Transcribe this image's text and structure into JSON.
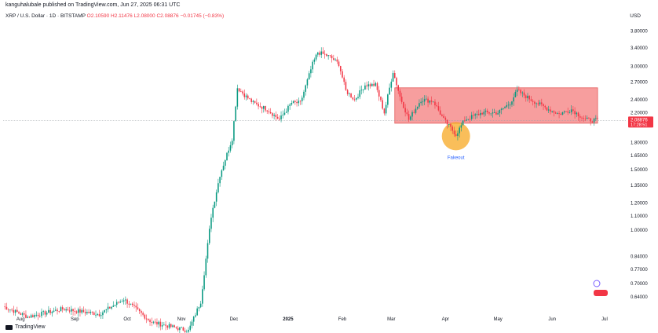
{
  "header": {
    "publisher": "kanguhalubale published on TradingView.com, Jun 27, 2025 06:31 UTC",
    "symbol": "XRP / U.S. Dollar · 1D · BITSTAMP",
    "ohlc": "O2.10590  H2.11476  L2.08000  C2.08876  −0.01745 (−0.83%)",
    "currency": "USD"
  },
  "footer": {
    "brand": "TradingView"
  },
  "colors": {
    "up": "#089981",
    "down": "#f23645",
    "box": "#f47e7e",
    "fakeout": "#f7a823",
    "label_blue": "#2962ff"
  },
  "chart_data": {
    "type": "candlestick",
    "y_scale": "log",
    "y_ticks": [
      3.8,
      3.4,
      3.0,
      2.7,
      2.4,
      2.2,
      1.8,
      1.65,
      1.5,
      1.35,
      1.2,
      1.1,
      1.0,
      0.84,
      0.77,
      0.7,
      0.64
    ],
    "y_tick_labels": [
      "3.80000",
      "3.40000",
      "3.00000",
      "2.70000",
      "2.40000",
      "2.20000",
      "1.80000",
      "1.65000",
      "1.50000",
      "1.35000",
      "1.20000",
      "1.10000",
      "1.00000",
      "0.84000",
      "0.77000",
      "0.70000",
      "0.64000"
    ],
    "x_ticks": [
      {
        "label": "Aug",
        "date": "2024-08-01"
      },
      {
        "label": "Sep",
        "date": "2024-09-01"
      },
      {
        "label": "Oct",
        "date": "2024-10-01"
      },
      {
        "label": "Nov",
        "date": "2024-11-01"
      },
      {
        "label": "Dec",
        "date": "2024-12-01"
      },
      {
        "label": "2025",
        "date": "2025-01-01"
      },
      {
        "label": "Feb",
        "date": "2025-02-01"
      },
      {
        "label": "Mar",
        "date": "2025-03-01"
      },
      {
        "label": "Apr",
        "date": "2025-04-01"
      },
      {
        "label": "May",
        "date": "2025-05-01"
      },
      {
        "label": "Jun",
        "date": "2025-06-01"
      },
      {
        "label": "Jul",
        "date": "2025-07-01"
      }
    ],
    "x_range": [
      "2024-07-22",
      "2025-07-10"
    ],
    "y_range": [
      0.62,
      4.0
    ],
    "last_price": 2.08876,
    "last_price_label": "2.08876",
    "countdown_label": "17:28:51",
    "range_box": {
      "x_start": "2025-03-03",
      "x_end": "2025-06-27",
      "y_low": 2.05,
      "y_high": 2.6
    },
    "fakeout": {
      "date": "2025-04-07",
      "price": 1.88,
      "label": "Fakeout"
    },
    "anchors": [
      [
        "2024-07-22",
        0.6
      ],
      [
        "2024-08-05",
        0.56
      ],
      [
        "2024-08-25",
        0.59
      ],
      [
        "2024-09-15",
        0.57
      ],
      [
        "2024-09-29",
        0.63
      ],
      [
        "2024-10-15",
        0.54
      ],
      [
        "2024-11-05",
        0.51
      ],
      [
        "2024-11-12",
        0.62
      ],
      [
        "2024-11-18",
        1.1
      ],
      [
        "2024-11-23",
        1.45
      ],
      [
        "2024-11-30",
        1.85
      ],
      [
        "2024-12-03",
        2.6
      ],
      [
        "2024-12-08",
        2.45
      ],
      [
        "2024-12-12",
        2.35
      ],
      [
        "2024-12-20",
        2.25
      ],
      [
        "2024-12-27",
        2.1
      ],
      [
        "2025-01-03",
        2.35
      ],
      [
        "2025-01-08",
        2.35
      ],
      [
        "2025-01-15",
        3.05
      ],
      [
        "2025-01-18",
        3.3
      ],
      [
        "2025-01-25",
        3.2
      ],
      [
        "2025-01-30",
        3.05
      ],
      [
        "2025-02-03",
        2.55
      ],
      [
        "2025-02-08",
        2.4
      ],
      [
        "2025-02-14",
        2.65
      ],
      [
        "2025-02-20",
        2.65
      ],
      [
        "2025-02-25",
        2.2
      ],
      [
        "2025-03-02",
        2.9
      ],
      [
        "2025-03-06",
        2.45
      ],
      [
        "2025-03-11",
        2.1
      ],
      [
        "2025-03-18",
        2.4
      ],
      [
        "2025-03-25",
        2.38
      ],
      [
        "2025-03-31",
        2.1
      ],
      [
        "2025-04-07",
        1.9
      ],
      [
        "2025-04-12",
        2.1
      ],
      [
        "2025-04-22",
        2.2
      ],
      [
        "2025-05-01",
        2.2
      ],
      [
        "2025-05-08",
        2.35
      ],
      [
        "2025-05-12",
        2.55
      ],
      [
        "2025-05-20",
        2.4
      ],
      [
        "2025-05-30",
        2.25
      ],
      [
        "2025-06-05",
        2.18
      ],
      [
        "2025-06-12",
        2.25
      ],
      [
        "2025-06-20",
        2.1
      ],
      [
        "2025-06-27",
        2.09
      ]
    ]
  }
}
